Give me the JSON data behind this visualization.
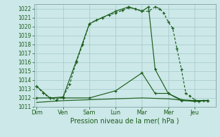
{
  "xlabel": "Pression niveau de la mer( hPa )",
  "background_color": "#cce8e8",
  "grid_color": "#aacccc",
  "line_color": "#1a5c1a",
  "spine_color": "#88aaaa",
  "ylim": [
    1011,
    1022.5
  ],
  "yticks": [
    1011,
    1012,
    1013,
    1014,
    1015,
    1016,
    1017,
    1018,
    1019,
    1020,
    1021,
    1022
  ],
  "day_labels": [
    "Dim",
    "Ven",
    "Sam",
    "Lun",
    "Mar",
    "Mer",
    "Jeu"
  ],
  "day_positions": [
    0,
    1,
    2,
    3,
    4,
    5,
    6
  ],
  "xlim": [
    -0.1,
    6.8
  ],
  "series": [
    {
      "x": [
        0.0,
        0.25,
        0.5,
        0.75,
        1.0,
        1.25,
        1.5,
        1.75,
        2.0,
        2.25,
        2.5,
        2.75,
        3.0,
        3.25,
        3.5,
        3.75,
        4.0,
        4.25,
        4.5,
        4.67,
        4.83,
        5.0,
        5.17,
        5.33,
        5.5,
        5.67,
        5.83,
        6.0,
        6.17,
        6.33,
        6.5
      ],
      "y": [
        1013.3,
        1012.5,
        1012.0,
        1011.8,
        1012.1,
        1013.5,
        1016.0,
        1018.0,
        1020.3,
        1020.7,
        1021.0,
        1021.3,
        1021.5,
        1021.8,
        1022.1,
        1022.0,
        1021.7,
        1021.7,
        1022.2,
        1022.0,
        1021.5,
        1020.5,
        1019.8,
        1017.5,
        1015.2,
        1012.5,
        1012.2,
        1011.8,
        1011.6,
        1011.7,
        1011.7
      ],
      "style": "dotted",
      "marker": true
    },
    {
      "x": [
        0.0,
        0.5,
        1.0,
        1.5,
        2.0,
        2.5,
        3.0,
        3.5,
        4.0,
        4.25,
        4.5,
        5.0,
        5.5,
        6.0,
        6.5
      ],
      "y": [
        1013.3,
        1012.0,
        1012.1,
        1016.1,
        1020.3,
        1021.0,
        1021.7,
        1022.2,
        1021.7,
        1022.2,
        1015.2,
        1012.5,
        1011.7,
        1011.7,
        1011.7
      ],
      "style": "solid",
      "marker": true
    },
    {
      "x": [
        0.0,
        1.0,
        2.0,
        3.0,
        4.0,
        4.5,
        5.0,
        5.5,
        6.0,
        6.5
      ],
      "y": [
        1012.0,
        1012.0,
        1012.0,
        1012.8,
        1014.8,
        1012.5,
        1012.5,
        1011.8,
        1011.7,
        1011.7
      ],
      "style": "solid",
      "marker": true
    },
    {
      "x": [
        0.0,
        1.0,
        2.0,
        3.0,
        4.0,
        5.0,
        6.0,
        6.5
      ],
      "y": [
        1011.5,
        1011.7,
        1011.8,
        1011.9,
        1012.0,
        1011.9,
        1011.6,
        1011.7
      ],
      "style": "solid",
      "marker": false
    }
  ]
}
